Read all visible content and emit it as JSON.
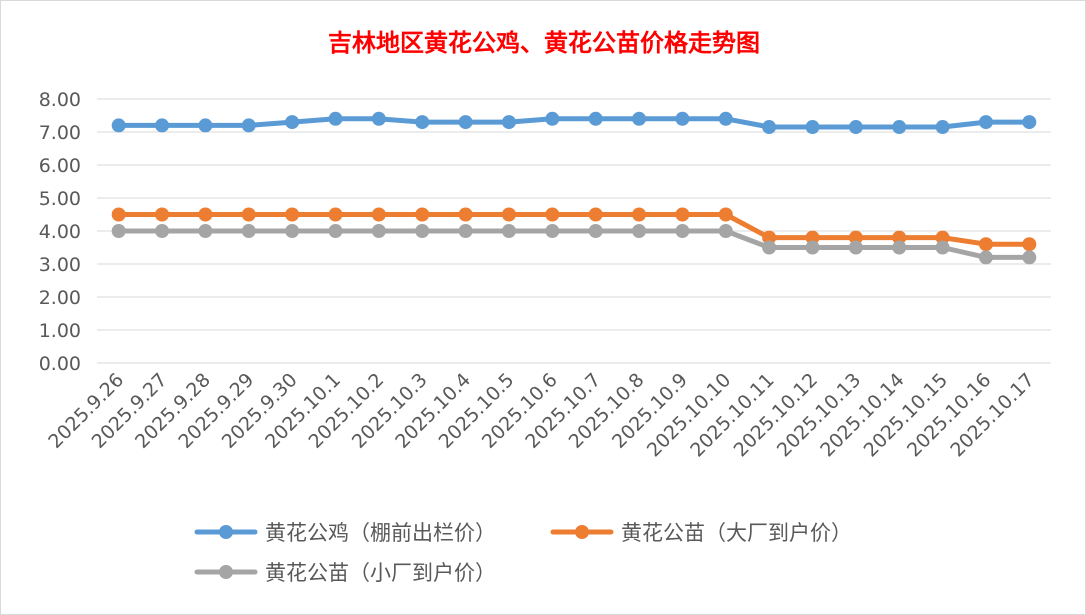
{
  "chart_data": {
    "type": "line",
    "title": "吉林地区黄花公鸡、黄花公苗价格走势图",
    "title_color": "#ff0000",
    "xlabel": "",
    "ylabel": "",
    "categories": [
      "2025.9.26",
      "2025.9.27",
      "2025.9.28",
      "2025.9.29",
      "2025.9.30",
      "2025.10.1",
      "2025.10.2",
      "2025.10.3",
      "2025.10.4",
      "2025.10.5",
      "2025.10.6",
      "2025.10.7",
      "2025.10.8",
      "2025.10.9",
      "2025.10.10",
      "2025.10.11",
      "2025.10.12",
      "2025.10.13",
      "2025.10.14",
      "2025.10.15",
      "2025.10.16",
      "2025.10.17"
    ],
    "y_ticks": [
      "0.00",
      "1.00",
      "2.00",
      "3.00",
      "4.00",
      "5.00",
      "6.00",
      "7.00",
      "8.00"
    ],
    "ylim": [
      0,
      8
    ],
    "grid": true,
    "legend_position": "bottom",
    "series": [
      {
        "name": "黄花公鸡（棚前出栏价）",
        "color": "#5b9bd5",
        "values": [
          7.2,
          7.2,
          7.2,
          7.2,
          7.3,
          7.4,
          7.4,
          7.3,
          7.3,
          7.3,
          7.4,
          7.4,
          7.4,
          7.4,
          7.4,
          7.15,
          7.15,
          7.15,
          7.15,
          7.15,
          7.3,
          7.3
        ]
      },
      {
        "name": "黄花公苗（大厂到户价）",
        "color": "#ed7d31",
        "values": [
          4.5,
          4.5,
          4.5,
          4.5,
          4.5,
          4.5,
          4.5,
          4.5,
          4.5,
          4.5,
          4.5,
          4.5,
          4.5,
          4.5,
          4.5,
          3.8,
          3.8,
          3.8,
          3.8,
          3.8,
          3.6,
          3.6
        ]
      },
      {
        "name": "黄花公苗（小厂到户价）",
        "color": "#a5a5a5",
        "values": [
          4.0,
          4.0,
          4.0,
          4.0,
          4.0,
          4.0,
          4.0,
          4.0,
          4.0,
          4.0,
          4.0,
          4.0,
          4.0,
          4.0,
          4.0,
          3.5,
          3.5,
          3.5,
          3.5,
          3.5,
          3.2,
          3.2
        ]
      }
    ]
  }
}
